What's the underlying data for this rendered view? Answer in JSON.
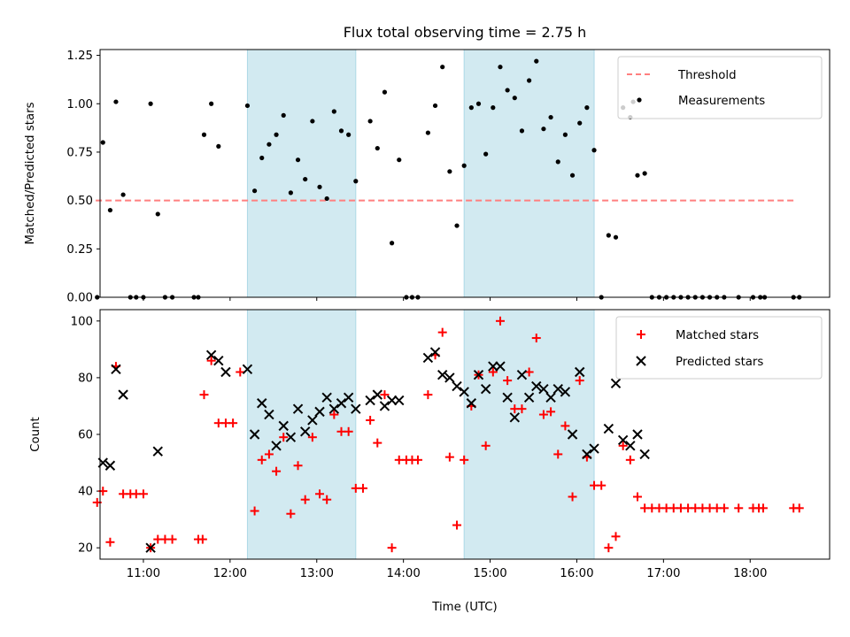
{
  "chart_data": [
    {
      "type": "scatter",
      "title": "Flux total observing time = 2.75 h",
      "xlabel": "",
      "ylabel": "Matched/Predicted stars",
      "xlim": [
        "10:30",
        "18:55"
      ],
      "ylim": [
        0,
        1.28
      ],
      "yticks": [
        "0.00",
        "0.25",
        "0.50",
        "0.75",
        "1.00",
        "1.25"
      ],
      "yticks_values": [
        0,
        0.25,
        0.5,
        0.75,
        1.0,
        1.25
      ],
      "shaded_intervals": [
        [
          "12:12",
          "13:27"
        ],
        [
          "14:42",
          "16:12"
        ]
      ],
      "shade_color": "#add8e6",
      "threshold": {
        "name": "Threshold",
        "y": 0.5,
        "x_start": "10:27",
        "x_end": "18:30",
        "color": "#ff7f7f"
      },
      "legend_position": "top-right",
      "series": [
        {
          "name": "Measurements",
          "marker": "dot",
          "color": "#000000",
          "points": [
            [
              "10:28",
              0.0
            ],
            [
              "10:32",
              0.8
            ],
            [
              "10:37",
              0.45
            ],
            [
              "10:41",
              1.01
            ],
            [
              "10:46",
              0.53
            ],
            [
              "10:51",
              0.0
            ],
            [
              "10:55",
              0.0
            ],
            [
              "11:00",
              0.0
            ],
            [
              "11:05",
              1.0
            ],
            [
              "11:10",
              0.43
            ],
            [
              "11:15",
              0.0
            ],
            [
              "11:20",
              0.0
            ],
            [
              "11:35",
              0.0
            ],
            [
              "11:38",
              0.0
            ],
            [
              "11:42",
              0.84
            ],
            [
              "11:47",
              1.0
            ],
            [
              "11:52",
              0.78
            ],
            [
              "12:12",
              0.99
            ],
            [
              "12:17",
              0.55
            ],
            [
              "12:22",
              0.72
            ],
            [
              "12:27",
              0.79
            ],
            [
              "12:32",
              0.84
            ],
            [
              "12:37",
              0.94
            ],
            [
              "12:42",
              0.54
            ],
            [
              "12:47",
              0.71
            ],
            [
              "12:52",
              0.61
            ],
            [
              "12:57",
              0.91
            ],
            [
              "13:02",
              0.57
            ],
            [
              "13:07",
              0.51
            ],
            [
              "13:12",
              0.96
            ],
            [
              "13:17",
              0.86
            ],
            [
              "13:22",
              0.84
            ],
            [
              "13:27",
              0.6
            ],
            [
              "13:37",
              0.91
            ],
            [
              "13:42",
              0.77
            ],
            [
              "13:47",
              1.06
            ],
            [
              "13:52",
              0.28
            ],
            [
              "13:57",
              0.71
            ],
            [
              "14:02",
              0.0
            ],
            [
              "14:06",
              0.0
            ],
            [
              "14:10",
              0.0
            ],
            [
              "14:17",
              0.85
            ],
            [
              "14:22",
              0.99
            ],
            [
              "14:27",
              1.19
            ],
            [
              "14:32",
              0.65
            ],
            [
              "14:37",
              0.37
            ],
            [
              "14:42",
              0.68
            ],
            [
              "14:47",
              0.98
            ],
            [
              "14:52",
              1.0
            ],
            [
              "14:57",
              0.74
            ],
            [
              "15:02",
              0.98
            ],
            [
              "15:07",
              1.19
            ],
            [
              "15:12",
              1.07
            ],
            [
              "15:17",
              1.03
            ],
            [
              "15:22",
              0.86
            ],
            [
              "15:27",
              1.12
            ],
            [
              "15:32",
              1.22
            ],
            [
              "15:37",
              0.87
            ],
            [
              "15:42",
              0.93
            ],
            [
              "15:47",
              0.7
            ],
            [
              "15:52",
              0.84
            ],
            [
              "15:57",
              0.63
            ],
            [
              "16:02",
              0.9
            ],
            [
              "16:07",
              0.98
            ],
            [
              "16:12",
              0.76
            ],
            [
              "16:17",
              0.0
            ],
            [
              "16:22",
              0.32
            ],
            [
              "16:27",
              0.31
            ],
            [
              "16:32",
              0.98
            ],
            [
              "16:37",
              0.93
            ],
            [
              "16:39",
              1.01
            ],
            [
              "16:42",
              0.63
            ],
            [
              "16:47",
              0.64
            ],
            [
              "16:52",
              0.0
            ],
            [
              "16:57",
              0.0
            ],
            [
              "17:02",
              0.0
            ],
            [
              "17:07",
              0.0
            ],
            [
              "17:12",
              0.0
            ],
            [
              "17:17",
              0.0
            ],
            [
              "17:22",
              0.0
            ],
            [
              "17:27",
              0.0
            ],
            [
              "17:32",
              0.0
            ],
            [
              "17:37",
              0.0
            ],
            [
              "17:42",
              0.0
            ],
            [
              "17:52",
              0.0
            ],
            [
              "18:02",
              0.0
            ],
            [
              "18:07",
              0.0
            ],
            [
              "18:10",
              0.0
            ],
            [
              "18:30",
              0.0
            ],
            [
              "18:34",
              0.0
            ]
          ]
        }
      ]
    },
    {
      "type": "scatter",
      "title": "",
      "xlabel": "Time (UTC)",
      "ylabel": "Count",
      "xlim": [
        "10:30",
        "18:55"
      ],
      "ylim": [
        16,
        104
      ],
      "yticks": [
        "20",
        "40",
        "60",
        "80",
        "100"
      ],
      "yticks_values": [
        20,
        40,
        60,
        80,
        100
      ],
      "xticks": [
        "11:00",
        "12:00",
        "13:00",
        "14:00",
        "15:00",
        "16:00",
        "17:00",
        "18:00"
      ],
      "shaded_intervals": [
        [
          "12:12",
          "13:27"
        ],
        [
          "14:42",
          "16:12"
        ]
      ],
      "shade_color": "#add8e6",
      "legend_position": "top-right",
      "series": [
        {
          "name": "Matched stars",
          "marker": "plus",
          "color": "#ff0000",
          "points": [
            [
              "10:28",
              36
            ],
            [
              "10:32",
              40
            ],
            [
              "10:37",
              22
            ],
            [
              "10:41",
              84
            ],
            [
              "10:46",
              39
            ],
            [
              "10:51",
              39
            ],
            [
              "10:55",
              39
            ],
            [
              "11:00",
              39
            ],
            [
              "11:05",
              20
            ],
            [
              "11:10",
              23
            ],
            [
              "11:15",
              23
            ],
            [
              "11:20",
              23
            ],
            [
              "11:38",
              23
            ],
            [
              "11:41",
              23
            ],
            [
              "11:42",
              74
            ],
            [
              "11:47",
              86
            ],
            [
              "11:52",
              64
            ],
            [
              "11:57",
              64
            ],
            [
              "12:02",
              64
            ],
            [
              "12:07",
              82
            ],
            [
              "12:17",
              33
            ],
            [
              "12:22",
              51
            ],
            [
              "12:27",
              53
            ],
            [
              "12:32",
              47
            ],
            [
              "12:37",
              59
            ],
            [
              "12:42",
              32
            ],
            [
              "12:47",
              49
            ],
            [
              "12:52",
              37
            ],
            [
              "12:57",
              59
            ],
            [
              "13:02",
              39
            ],
            [
              "13:07",
              37
            ],
            [
              "13:12",
              67
            ],
            [
              "13:17",
              61
            ],
            [
              "13:22",
              61
            ],
            [
              "13:27",
              41
            ],
            [
              "13:32",
              41
            ],
            [
              "13:37",
              65
            ],
            [
              "13:42",
              57
            ],
            [
              "13:47",
              74
            ],
            [
              "13:52",
              20
            ],
            [
              "13:57",
              51
            ],
            [
              "14:02",
              51
            ],
            [
              "14:06",
              51
            ],
            [
              "14:10",
              51
            ],
            [
              "14:17",
              74
            ],
            [
              "14:22",
              88
            ],
            [
              "14:27",
              96
            ],
            [
              "14:32",
              52
            ],
            [
              "14:37",
              28
            ],
            [
              "14:42",
              51
            ],
            [
              "14:47",
              70
            ],
            [
              "14:52",
              81
            ],
            [
              "14:57",
              56
            ],
            [
              "15:02",
              82
            ],
            [
              "15:07",
              100
            ],
            [
              "15:12",
              79
            ],
            [
              "15:17",
              69
            ],
            [
              "15:22",
              69
            ],
            [
              "15:27",
              82
            ],
            [
              "15:32",
              94
            ],
            [
              "15:37",
              67
            ],
            [
              "15:42",
              68
            ],
            [
              "15:47",
              53
            ],
            [
              "15:52",
              63
            ],
            [
              "15:57",
              38
            ],
            [
              "16:02",
              79
            ],
            [
              "16:07",
              52
            ],
            [
              "16:12",
              42
            ],
            [
              "16:17",
              42
            ],
            [
              "16:22",
              20
            ],
            [
              "16:27",
              24
            ],
            [
              "16:32",
              56
            ],
            [
              "16:37",
              51
            ],
            [
              "16:42",
              38
            ],
            [
              "16:47",
              34
            ],
            [
              "16:52",
              34
            ],
            [
              "16:57",
              34
            ],
            [
              "17:02",
              34
            ],
            [
              "17:07",
              34
            ],
            [
              "17:12",
              34
            ],
            [
              "17:17",
              34
            ],
            [
              "17:22",
              34
            ],
            [
              "17:27",
              34
            ],
            [
              "17:32",
              34
            ],
            [
              "17:37",
              34
            ],
            [
              "17:42",
              34
            ],
            [
              "17:52",
              34
            ],
            [
              "18:02",
              34
            ],
            [
              "18:06",
              34
            ],
            [
              "18:09",
              34
            ],
            [
              "18:30",
              34
            ],
            [
              "18:34",
              34
            ]
          ]
        },
        {
          "name": "Predicted stars",
          "marker": "x",
          "color": "#000000",
          "points": [
            [
              "10:32",
              50
            ],
            [
              "10:37",
              49
            ],
            [
              "10:41",
              83
            ],
            [
              "10:46",
              74
            ],
            [
              "11:05",
              20
            ],
            [
              "11:10",
              54
            ],
            [
              "11:47",
              88
            ],
            [
              "11:52",
              86
            ],
            [
              "11:57",
              82
            ],
            [
              "12:12",
              83
            ],
            [
              "12:17",
              60
            ],
            [
              "12:22",
              71
            ],
            [
              "12:27",
              67
            ],
            [
              "12:32",
              56
            ],
            [
              "12:37",
              63
            ],
            [
              "12:42",
              59
            ],
            [
              "12:47",
              69
            ],
            [
              "12:52",
              61
            ],
            [
              "12:57",
              65
            ],
            [
              "13:02",
              68
            ],
            [
              "13:07",
              73
            ],
            [
              "13:12",
              69
            ],
            [
              "13:17",
              71
            ],
            [
              "13:22",
              73
            ],
            [
              "13:27",
              69
            ],
            [
              "13:37",
              72
            ],
            [
              "13:42",
              74
            ],
            [
              "13:47",
              70
            ],
            [
              "13:52",
              72
            ],
            [
              "13:57",
              72
            ],
            [
              "14:17",
              87
            ],
            [
              "14:22",
              89
            ],
            [
              "14:27",
              81
            ],
            [
              "14:32",
              80
            ],
            [
              "14:37",
              77
            ],
            [
              "14:42",
              75
            ],
            [
              "14:47",
              71
            ],
            [
              "14:52",
              81
            ],
            [
              "14:57",
              76
            ],
            [
              "15:02",
              84
            ],
            [
              "15:07",
              84
            ],
            [
              "15:12",
              73
            ],
            [
              "15:17",
              66
            ],
            [
              "15:22",
              81
            ],
            [
              "15:27",
              73
            ],
            [
              "15:32",
              77
            ],
            [
              "15:37",
              76
            ],
            [
              "15:42",
              73
            ],
            [
              "15:47",
              76
            ],
            [
              "15:52",
              75
            ],
            [
              "15:57",
              60
            ],
            [
              "16:02",
              82
            ],
            [
              "16:07",
              53
            ],
            [
              "16:12",
              55
            ],
            [
              "16:22",
              62
            ],
            [
              "16:27",
              78
            ],
            [
              "16:32",
              58
            ],
            [
              "16:37",
              56
            ],
            [
              "16:42",
              60
            ],
            [
              "16:47",
              53
            ]
          ]
        }
      ]
    }
  ]
}
